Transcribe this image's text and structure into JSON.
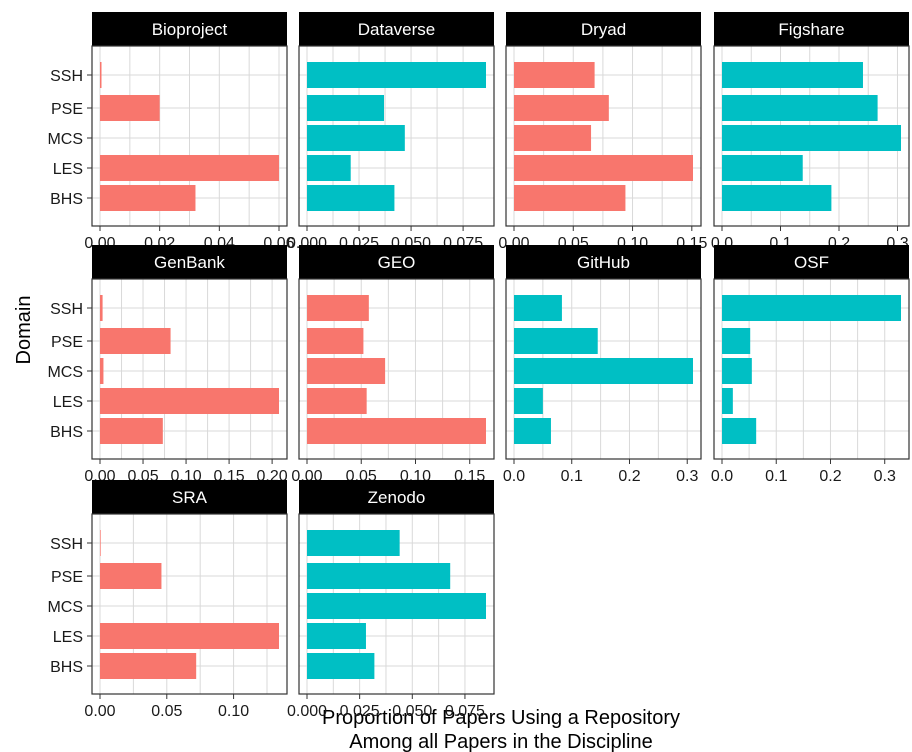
{
  "chart_data": {
    "type": "bar",
    "orientation": "horizontal",
    "facet_by": "repository",
    "categories": [
      "SSH",
      "PSE",
      "MCS",
      "LES",
      "BHS"
    ],
    "xlabel_lines": [
      "Proportion of Papers Using a Repository",
      "Among all Papers in the Discipline"
    ],
    "ylabel": "Domain",
    "grid": true,
    "legend": "none",
    "colors": {
      "red": "#F8766D",
      "teal": "#00BFC4",
      "strip": "#000000",
      "panel_border": "#333333",
      "grid": "#d9d9d9"
    },
    "facets": [
      {
        "name": "Bioproject",
        "color": "red",
        "values": [
          0.0005,
          0.02,
          0.0,
          0.06,
          0.032
        ],
        "xlim": [
          0,
          0.06
        ],
        "ticks": [
          0,
          0.02,
          0.04,
          0.06
        ],
        "tick_labels": [
          "0.00",
          "0.02",
          "0.04",
          "0.06"
        ]
      },
      {
        "name": "Dataverse",
        "color": "teal",
        "values": [
          0.086,
          0.037,
          0.047,
          0.021,
          0.042
        ],
        "xlim": [
          0,
          0.086
        ],
        "ticks": [
          0,
          0.025,
          0.05,
          0.075
        ],
        "tick_labels": [
          "0.000",
          "0.025",
          "0.050",
          "0.075"
        ]
      },
      {
        "name": "Dryad",
        "color": "red",
        "values": [
          0.068,
          0.08,
          0.065,
          0.151,
          0.094
        ],
        "xlim": [
          0,
          0.151
        ],
        "ticks": [
          0,
          0.05,
          0.1,
          0.15
        ],
        "tick_labels": [
          "0.00",
          "0.05",
          "0.10",
          "0.15"
        ]
      },
      {
        "name": "Figshare",
        "color": "teal",
        "values": [
          0.241,
          0.266,
          0.306,
          0.138,
          0.187
        ],
        "xlim": [
          0,
          0.306
        ],
        "ticks": [
          0,
          0.1,
          0.2,
          0.3
        ],
        "tick_labels": [
          "0.0",
          "0.1",
          "0.2",
          "0.3"
        ]
      },
      {
        "name": "GenBank",
        "color": "red",
        "values": [
          0.003,
          0.082,
          0.004,
          0.208,
          0.073
        ],
        "xlim": [
          0,
          0.208
        ],
        "ticks": [
          0,
          0.05,
          0.1,
          0.15,
          0.2
        ],
        "tick_labels": [
          "0.00",
          "0.05",
          "0.10",
          "0.15",
          "0.20"
        ]
      },
      {
        "name": "GEO",
        "color": "red",
        "values": [
          0.057,
          0.052,
          0.072,
          0.055,
          0.165
        ],
        "xlim": [
          0,
          0.165
        ],
        "ticks": [
          0,
          0.05,
          0.1,
          0.15
        ],
        "tick_labels": [
          "0.00",
          "0.05",
          "0.10",
          "0.15"
        ]
      },
      {
        "name": "GitHub",
        "color": "teal",
        "values": [
          0.083,
          0.145,
          0.31,
          0.05,
          0.064
        ],
        "xlim": [
          0,
          0.31
        ],
        "ticks": [
          0,
          0.1,
          0.2,
          0.3
        ],
        "tick_labels": [
          "0.0",
          "0.1",
          "0.2",
          "0.3"
        ]
      },
      {
        "name": "OSF",
        "color": "teal",
        "values": [
          0.33,
          0.052,
          0.055,
          0.02,
          0.063
        ],
        "xlim": [
          0,
          0.33
        ],
        "ticks": [
          0,
          0.1,
          0.2,
          0.3
        ],
        "tick_labels": [
          "0.0",
          "0.1",
          "0.2",
          "0.3"
        ]
      },
      {
        "name": "SRA",
        "color": "red",
        "values": [
          0.0005,
          0.046,
          0.0,
          0.134,
          0.072
        ],
        "xlim": [
          0,
          0.134
        ],
        "ticks": [
          0,
          0.05,
          0.1
        ],
        "tick_labels": [
          "0.00",
          "0.05",
          "0.10"
        ]
      },
      {
        "name": "Zenodo",
        "color": "teal",
        "values": [
          0.044,
          0.068,
          0.085,
          0.028,
          0.032
        ],
        "xlim": [
          0,
          0.085
        ],
        "ticks": [
          0,
          0.025,
          0.05,
          0.075
        ],
        "tick_labels": [
          "0.000",
          "0.025",
          "0.050",
          "0.075"
        ]
      }
    ]
  }
}
